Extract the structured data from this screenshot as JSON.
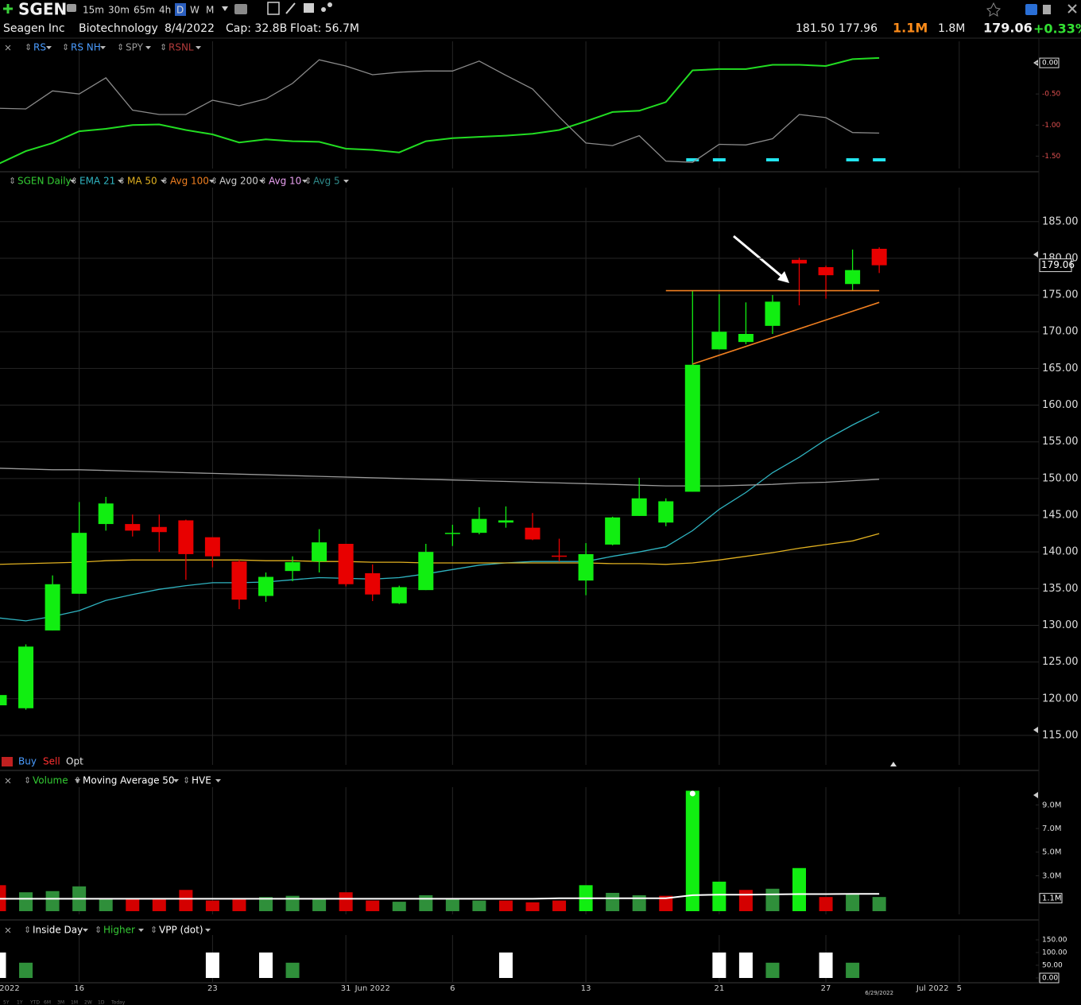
{
  "header": {
    "ticker": "SGEN",
    "timeframes": [
      "15m",
      "30m",
      "65m",
      "4h",
      "D",
      "W",
      "M"
    ],
    "active_timeframe": "D",
    "company": "Seagen Inc",
    "sector": "Biotechnology",
    "date": "8/4/2022",
    "cap": "Cap: 32.8B",
    "float": "Float: 56.7M",
    "high": "181.50",
    "low": "177.96",
    "volume": "1.1M",
    "avg_volume": "1.8M",
    "last": "179.06",
    "change": "+0.33%"
  },
  "trade_bar": {
    "buy": "Buy",
    "sell": "Sell",
    "opt": "Opt"
  },
  "footer": {
    "ranges": [
      "5Y",
      "1Y",
      "YTD",
      "6M",
      "3M",
      "1M",
      "2W",
      "1D",
      "Today"
    ]
  },
  "chart_data": [
    {
      "type": "line",
      "ylim": [
        -1.7,
        0.27
      ],
      "yticks": [
        {
          "value": 0,
          "label": "0.00"
        },
        {
          "value": -0.5,
          "label": "-0.50"
        },
        {
          "value": -1,
          "label": "-1.00"
        },
        {
          "value": -1.5,
          "label": "-1.50"
        }
      ],
      "series": [
        {
          "name": "RS",
          "color": "#4a9cff",
          "line_color": "#22dd22",
          "values": [
            -1.62,
            -1.42,
            -1.29,
            -1.1,
            -1.06,
            -1.0,
            -0.99,
            -1.08,
            -1.15,
            -1.28,
            -1.23,
            -1.26,
            -1.27,
            -1.38,
            -1.4,
            -1.44,
            -1.26,
            -1.21,
            -1.19,
            -1.17,
            -1.14,
            -1.08,
            -0.94,
            -0.79,
            -0.77,
            -0.63,
            -0.12,
            -0.1,
            -0.1,
            -0.03,
            -0.03,
            -0.05,
            0.06,
            0.08,
            null,
            null,
            null
          ]
        },
        {
          "name": "RS NH",
          "color": "#4a9cff",
          "marker_color": "#22e5f0",
          "markers": [
            26,
            27,
            29,
            32,
            33
          ]
        },
        {
          "name": "SPY",
          "color": "#9a9a9a",
          "line_color": "#8a8a8a",
          "values": [
            -0.73,
            -0.74,
            -0.45,
            -0.5,
            -0.24,
            -0.76,
            -0.83,
            -0.83,
            -0.6,
            -0.69,
            -0.58,
            -0.33,
            0.05,
            -0.05,
            -0.19,
            -0.15,
            -0.13,
            -0.13,
            0.03,
            -0.2,
            -0.42,
            -0.87,
            -1.29,
            -1.33,
            -1.17,
            -1.58,
            -1.6,
            -1.31,
            -1.32,
            -1.22,
            -0.83,
            -0.88,
            -1.12,
            -1.13,
            null,
            null,
            null
          ]
        },
        {
          "name": "RSNL",
          "color": "#b23a3a"
        }
      ]
    },
    {
      "type": "candlestick",
      "ylim": [
        111.2,
        189.2
      ],
      "yticks": [
        {
          "value": 185,
          "label": "185.00"
        },
        {
          "value": 180,
          "label": "180.00"
        },
        {
          "value": 175,
          "label": "175.00"
        },
        {
          "value": 170,
          "label": "170.00"
        },
        {
          "value": 165,
          "label": "165.00"
        },
        {
          "value": 160,
          "label": "160.00"
        },
        {
          "value": 155,
          "label": "155.00"
        },
        {
          "value": 150,
          "label": "150.00"
        },
        {
          "value": 145,
          "label": "145.00"
        },
        {
          "value": 140,
          "label": "140.00"
        },
        {
          "value": 135,
          "label": "135.00"
        },
        {
          "value": 130,
          "label": "130.00"
        },
        {
          "value": 125,
          "label": "125.00"
        },
        {
          "value": 120,
          "label": "120.00"
        },
        {
          "value": 115,
          "label": "115.00"
        }
      ],
      "grid": true,
      "last_value": 179.06,
      "series": [
        {
          "name": "SGEN Daily",
          "color": "#33cc33",
          "up_color": "#11ee11",
          "down_color": "#e80000",
          "open": [
            119.1,
            118.7,
            129.3,
            134.3,
            143.8,
            143.8,
            143.4,
            144.3,
            142.0,
            138.7,
            134.0,
            137.4,
            138.7,
            141.1,
            137.1,
            133.0,
            134.8,
            142.5,
            142.6,
            144.0,
            143.3,
            139.5,
            136.1,
            141.0,
            144.9,
            144.0,
            148.2,
            167.6,
            168.6,
            170.8,
            179.8,
            178.8,
            176.5,
            181.3,
            null,
            null,
            null
          ],
          "high": [
            120.5,
            127.4,
            136.8,
            146.8,
            147.5,
            145.1,
            145.1,
            144.4,
            142.0,
            138.9,
            137.2,
            139.4,
            143.1,
            141.1,
            138.3,
            135.4,
            141.1,
            143.7,
            146.1,
            146.2,
            145.3,
            141.8,
            141.2,
            144.8,
            150.1,
            147.3,
            175.6,
            175.1,
            174.0,
            175.0,
            180.1,
            179.0,
            181.2,
            181.5,
            null,
            null,
            null
          ],
          "low": [
            119.1,
            118.5,
            129.3,
            134.3,
            142.9,
            142.1,
            140.0,
            136.2,
            137.9,
            132.2,
            133.2,
            136.0,
            137.2,
            135.3,
            133.3,
            132.9,
            134.8,
            140.8,
            142.4,
            143.3,
            141.6,
            138.7,
            134.1,
            140.9,
            144.9,
            143.5,
            148.2,
            167.6,
            168.3,
            169.7,
            173.6,
            174.5,
            175.6,
            178.0,
            null,
            null,
            null
          ],
          "close": [
            120.5,
            127.1,
            135.6,
            142.6,
            146.6,
            142.9,
            142.7,
            139.7,
            139.4,
            133.5,
            136.6,
            138.6,
            141.3,
            135.6,
            134.2,
            135.2,
            140.0,
            142.6,
            144.5,
            144.3,
            141.7,
            139.4,
            139.7,
            144.7,
            147.3,
            146.9,
            165.5,
            170.0,
            169.7,
            174.1,
            179.3,
            177.7,
            178.4,
            179.06,
            null,
            null,
            null
          ]
        },
        {
          "name": "EMA 21",
          "color": "#2fb3c0",
          "values": [
            131.0,
            130.6,
            131.2,
            132.0,
            133.4,
            134.2,
            134.9,
            135.4,
            135.8,
            135.8,
            135.9,
            136.2,
            136.5,
            136.4,
            136.3,
            136.5,
            137.0,
            137.6,
            138.2,
            138.5,
            138.7,
            138.7,
            138.7,
            139.4,
            140.0,
            140.7,
            142.9,
            145.8,
            148.1,
            150.8,
            152.9,
            155.3,
            157.3,
            159.1,
            null,
            null,
            null
          ]
        },
        {
          "name": "MA 50",
          "color": "#e0b020",
          "values": [
            138.3,
            138.4,
            138.5,
            138.6,
            138.8,
            138.9,
            138.9,
            138.9,
            138.9,
            138.9,
            138.8,
            138.8,
            138.7,
            138.7,
            138.6,
            138.6,
            138.5,
            138.5,
            138.5,
            138.5,
            138.5,
            138.5,
            138.5,
            138.4,
            138.4,
            138.3,
            138.5,
            138.9,
            139.4,
            139.9,
            140.5,
            141.0,
            141.5,
            142.5,
            null,
            null,
            null
          ]
        },
        {
          "name": "Avg 100",
          "color": "#f07f20"
        },
        {
          "name": "Avg 200",
          "color": "#cccccc",
          "line_color": "#9a9a9a",
          "values": [
            151.4,
            151.3,
            151.2,
            151.2,
            151.1,
            151.0,
            150.9,
            150.8,
            150.7,
            150.6,
            150.5,
            150.4,
            150.3,
            150.2,
            150.1,
            150.0,
            149.9,
            149.8,
            149.7,
            149.6,
            149.5,
            149.4,
            149.3,
            149.2,
            149.1,
            149.0,
            149.0,
            149.0,
            149.1,
            149.2,
            149.4,
            149.5,
            149.7,
            149.9,
            null,
            null,
            null
          ]
        },
        {
          "name": "Avg 10",
          "color": "#e8a0f0"
        },
        {
          "name": "Avg 5",
          "color": "#2e8a8a"
        }
      ],
      "trendlines": [
        {
          "color": "#f07f20",
          "x": [
            25,
            33
          ],
          "values": [
            175.6,
            175.6
          ]
        },
        {
          "color": "#f07f20",
          "x": [
            26,
            33
          ],
          "values": [
            165.6,
            174.0
          ]
        }
      ]
    },
    {
      "type": "bar",
      "ylim": [
        0,
        10.3
      ],
      "yticks": [
        {
          "value": 9,
          "label": "9.0M"
        },
        {
          "value": 7,
          "label": "7.0M"
        },
        {
          "value": 5,
          "label": "5.0M"
        },
        {
          "value": 3,
          "label": "3.0M"
        }
      ],
      "last_value": {
        "value": 1.1,
        "label": "1.1M"
      },
      "series": [
        {
          "name": "Volume",
          "color": "#33cc33",
          "values": [
            2.2,
            1.6,
            1.7,
            2.1,
            1.0,
            1.0,
            1.0,
            1.8,
            0.9,
            1.0,
            1.2,
            1.3,
            1.1,
            1.6,
            0.9,
            0.8,
            1.35,
            1.0,
            0.9,
            0.9,
            0.75,
            0.9,
            2.2,
            1.55,
            1.35,
            1.3,
            10.2,
            2.5,
            1.8,
            1.9,
            3.65,
            1.2,
            1.5,
            1.2,
            null,
            null,
            null
          ],
          "colors": [
            "#d40000",
            "#2f8f3a",
            "#2f8f3a",
            "#2f8f3a",
            "#2f8f3a",
            "#d40000",
            "#d40000",
            "#d40000",
            "#d40000",
            "#d40000",
            "#2f8f3a",
            "#2f8f3a",
            "#2f8f3a",
            "#d40000",
            "#d40000",
            "#2f8f3a",
            "#2f8f3a",
            "#2f8f3a",
            "#2f8f3a",
            "#d40000",
            "#d40000",
            "#d40000",
            "#11ee11",
            "#2f8f3a",
            "#2f8f3a",
            "#d40000",
            "#11ee11",
            "#11ee11",
            "#d40000",
            "#2f8f3a",
            "#11ee11",
            "#d40000",
            "#2f8f3a",
            "#2f8f3a",
            null,
            null,
            null
          ]
        },
        {
          "name": "Moving Average 50",
          "color": "#ffffff",
          "values": [
            1.05,
            1.05,
            1.05,
            1.05,
            1.05,
            1.05,
            1.05,
            1.05,
            1.05,
            1.05,
            1.05,
            1.05,
            1.05,
            1.05,
            1.05,
            1.05,
            1.05,
            1.05,
            1.05,
            1.05,
            1.05,
            1.1,
            1.1,
            1.1,
            1.1,
            1.1,
            1.35,
            1.4,
            1.4,
            1.42,
            1.45,
            1.45,
            1.47,
            1.47,
            null,
            null,
            null
          ]
        },
        {
          "name": "HVE",
          "color": "#ffffff"
        }
      ]
    },
    {
      "type": "bar",
      "ylim": [
        0,
        162.5
      ],
      "yticks": [
        {
          "value": 150,
          "label": "150.00"
        },
        {
          "value": 100,
          "label": "100.00"
        },
        {
          "value": 50,
          "label": "50.00"
        },
        {
          "value": 0,
          "label": "0.00"
        }
      ],
      "categories": [
        "2022",
        null,
        null,
        "16",
        null,
        null,
        null,
        null,
        "23",
        null,
        null,
        null,
        null,
        "31",
        "Jun 2022",
        null,
        null,
        "6",
        null,
        null,
        null,
        null,
        "13",
        null,
        null,
        null,
        null,
        "21",
        null,
        null,
        null,
        "27",
        null,
        "6/29/2022",
        null,
        "Jul 2022",
        "5"
      ],
      "series": [
        {
          "name": "Inside Day",
          "color": "#ffffff",
          "values": [
            100,
            null,
            null,
            null,
            null,
            null,
            null,
            null,
            100,
            null,
            100,
            null,
            null,
            null,
            null,
            null,
            null,
            null,
            null,
            100,
            null,
            null,
            null,
            null,
            null,
            null,
            null,
            100,
            100,
            null,
            null,
            100,
            null,
            null,
            null,
            null,
            null
          ]
        },
        {
          "name": "Higher",
          "color": "#35c935",
          "bar_color": "#2f8f3a",
          "values": [
            null,
            60,
            null,
            null,
            null,
            null,
            null,
            null,
            null,
            null,
            null,
            60,
            null,
            null,
            null,
            null,
            null,
            null,
            null,
            null,
            null,
            null,
            null,
            null,
            null,
            null,
            null,
            null,
            null,
            60,
            null,
            null,
            60,
            null,
            null,
            null,
            null
          ]
        },
        {
          "name": "VPP (dot)",
          "color": "#ffffff",
          "markers": [
            26
          ]
        }
      ]
    }
  ]
}
